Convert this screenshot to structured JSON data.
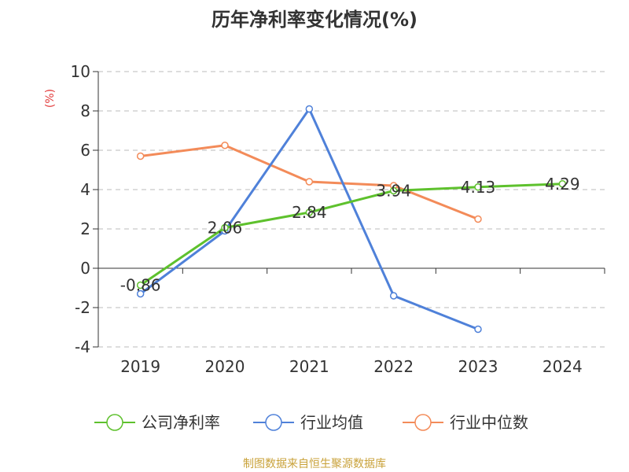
{
  "chart_data": {
    "type": "line",
    "title": "历年净利率变化情况(%)",
    "ylabel": "(%)",
    "categories": [
      "2019",
      "2020",
      "2021",
      "2022",
      "2023",
      "2024"
    ],
    "ylim": [
      -4,
      10
    ],
    "yticks": [
      -4,
      -2,
      0,
      2,
      4,
      6,
      8,
      10
    ],
    "grid": true,
    "legend_position": "bottom",
    "series": [
      {
        "name": "公司净利率",
        "color": "#5ec12d",
        "values": [
          -0.86,
          2.06,
          2.84,
          3.94,
          4.13,
          4.29
        ],
        "labels": [
          "-0.86",
          "2.06",
          "2.84",
          "3.94",
          "4.13",
          "4.29"
        ]
      },
      {
        "name": "行业均值",
        "color": "#4f81d9",
        "values": [
          -1.3,
          1.9,
          8.1,
          -1.4,
          -3.1,
          null
        ]
      },
      {
        "name": "行业中位数",
        "color": "#f38b59",
        "values": [
          5.7,
          6.25,
          4.4,
          4.2,
          2.5,
          null
        ]
      }
    ]
  },
  "source": "制图数据来自恒生聚源数据库",
  "colors": {
    "axis": "#333333",
    "grid": "#bbbbbb",
    "ylabel": "#e23b3b",
    "source": "#c9a23a"
  }
}
